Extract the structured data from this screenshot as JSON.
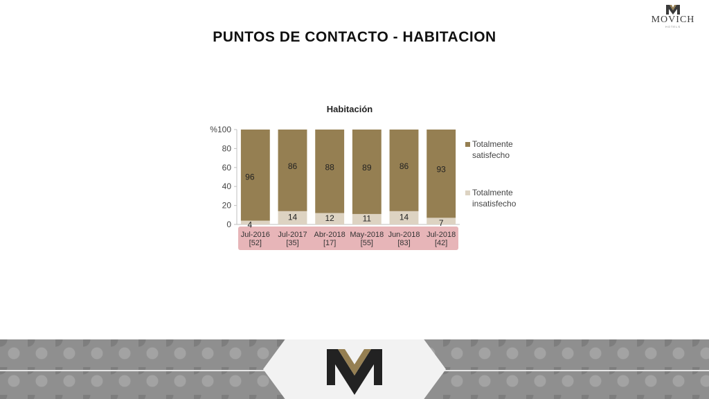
{
  "brand": {
    "name": "MOVICH",
    "sub": "HOTELS"
  },
  "page_title": "PUNTOS DE CONTACTO - HABITACION",
  "colors": {
    "satisfied": "#957f52",
    "unsatisfied": "#ddd3c2",
    "xaxis_band": "#e7b5b8"
  },
  "chart_data": {
    "type": "bar",
    "stacked": true,
    "title": "Habitación",
    "categories": [
      "Jul-2016 [52]",
      "Jul-2017 [35]",
      "Abr-2018 [17]",
      "May-2018 [55]",
      "Jun-2018 [83]",
      "Jul-2018 [42]"
    ],
    "category_lines": [
      [
        "Jul-2016",
        "[52]"
      ],
      [
        "Jul-2017",
        "[35]"
      ],
      [
        "Abr-2018",
        "[17]"
      ],
      [
        "May-2018",
        "[55]"
      ],
      [
        "Jun-2018",
        "[83]"
      ],
      [
        "Jul-2018",
        "[42]"
      ]
    ],
    "series": [
      {
        "name": "Totalmente insatisfecho",
        "values": [
          4,
          14,
          12,
          11,
          14,
          7
        ]
      },
      {
        "name": "Totalmente satisfecho",
        "values": [
          96,
          86,
          88,
          89,
          86,
          93
        ]
      }
    ],
    "ylabel": "%",
    "ylim": [
      0,
      100
    ],
    "yticks": [
      0,
      20,
      40,
      60,
      80,
      100
    ],
    "legend_position": "right",
    "grid": false
  }
}
